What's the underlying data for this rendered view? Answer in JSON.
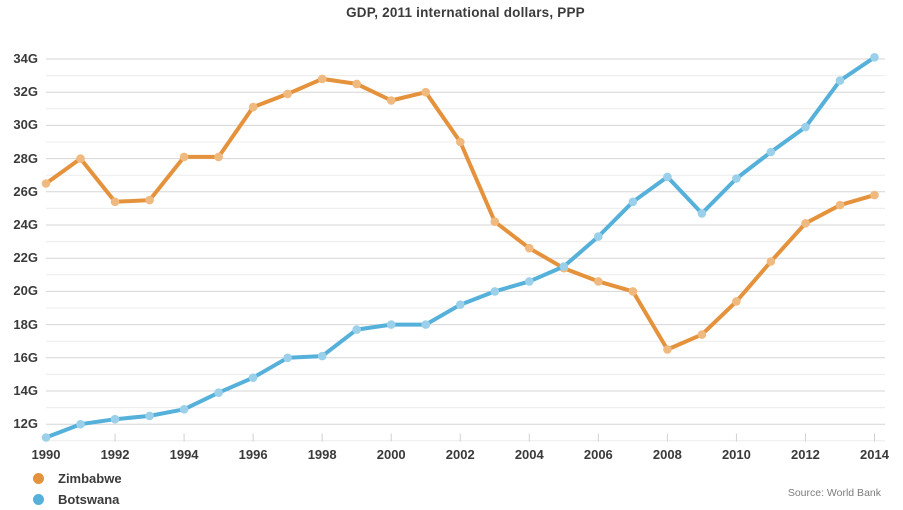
{
  "title": "GDP, 2011 international dollars, PPP",
  "source": "Source: World Bank",
  "colors": {
    "zimbabwe": "#e5923c",
    "zimbabwe_marker": "#efb97f",
    "botswana": "#55b0da",
    "botswana_marker": "#9bd0ea",
    "grid_major": "#d6d6d6",
    "grid_minor": "#ececec",
    "axis_tick": "#d0d0d0",
    "text": "#3a3a3a",
    "source_text": "#7d7d7d"
  },
  "legend": [
    {
      "label": "Zimbabwe",
      "color": "#e5923c"
    },
    {
      "label": "Botswana",
      "color": "#55b0da"
    }
  ],
  "chart_data": {
    "type": "line",
    "title": "GDP, 2011 international dollars, PPP",
    "xlabel": "",
    "ylabel": "",
    "unit": "G",
    "grid": "horizontal, major every 2G with faint minor lines every 1G",
    "legend_position": "bottom-left",
    "x": [
      1990,
      1991,
      1992,
      1993,
      1994,
      1995,
      1996,
      1997,
      1998,
      1999,
      2000,
      2001,
      2002,
      2003,
      2004,
      2005,
      2006,
      2007,
      2008,
      2009,
      2010,
      2011,
      2012,
      2013,
      2014
    ],
    "x_tick_labels": [
      "1990",
      "1992",
      "1994",
      "1996",
      "1998",
      "2000",
      "2002",
      "2004",
      "2006",
      "2008",
      "2010",
      "2012",
      "2014"
    ],
    "x_tick_values": [
      1990,
      1992,
      1994,
      1996,
      1998,
      2000,
      2002,
      2004,
      2006,
      2008,
      2010,
      2012,
      2014
    ],
    "y_tick_labels": [
      "12G",
      "14G",
      "16G",
      "18G",
      "20G",
      "22G",
      "24G",
      "26G",
      "28G",
      "30G",
      "32G",
      "34G"
    ],
    "y_tick_values": [
      12,
      14,
      16,
      18,
      20,
      22,
      24,
      26,
      28,
      30,
      32,
      34
    ],
    "ylim": [
      11,
      34.5
    ],
    "xlim": [
      1990,
      2014
    ],
    "series": [
      {
        "name": "Zimbabwe",
        "color": "#e5923c",
        "marker_color": "#efb97f",
        "values": [
          26.5,
          28.0,
          25.4,
          25.5,
          28.1,
          28.1,
          31.1,
          31.9,
          32.8,
          32.5,
          31.5,
          32.0,
          29.0,
          24.2,
          22.6,
          21.4,
          20.6,
          20.0,
          16.5,
          17.4,
          19.4,
          21.8,
          24.1,
          25.2,
          25.8
        ]
      },
      {
        "name": "Botswana",
        "color": "#55b0da",
        "marker_color": "#9bd0ea",
        "values": [
          11.2,
          12.0,
          12.3,
          12.5,
          12.9,
          13.9,
          14.8,
          16.0,
          16.1,
          17.7,
          18.0,
          18.0,
          19.2,
          20.0,
          20.6,
          21.5,
          23.3,
          25.4,
          26.9,
          24.7,
          26.8,
          28.4,
          29.9,
          32.7,
          34.1
        ]
      }
    ]
  }
}
